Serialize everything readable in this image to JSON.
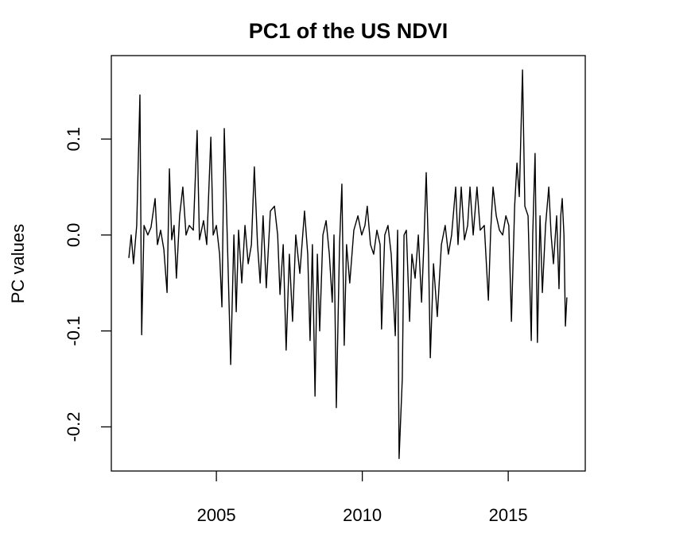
{
  "chart_data": {
    "type": "line",
    "title": "PC1 of the US NDVI",
    "y_label": "PC values",
    "color": "#000000",
    "xlim": [
      2001.4,
      2017.64
    ],
    "ylim": [
      -0.246,
      0.187
    ],
    "xticks": [
      2005,
      2010,
      2015
    ],
    "yticks": [
      -0.2,
      -0.1,
      {
        "value": 0,
        "label": "0.0"
      },
      0.1
    ],
    "x": [
      2002.0,
      2002.08,
      2002.16,
      2002.27,
      2002.38,
      2002.44,
      2002.52,
      2002.65,
      2002.76,
      2002.9,
      2002.98,
      2003.09,
      2003.2,
      2003.31,
      2003.39,
      2003.47,
      2003.55,
      2003.63,
      2003.74,
      2003.85,
      2003.96,
      2004.07,
      2004.21,
      2004.34,
      2004.42,
      2004.56,
      2004.67,
      2004.81,
      2004.89,
      2005.0,
      2005.11,
      2005.19,
      2005.27,
      2005.38,
      2005.49,
      2005.6,
      2005.68,
      2005.76,
      2005.87,
      2005.98,
      2006.09,
      2006.2,
      2006.3,
      2006.41,
      2006.5,
      2006.6,
      2006.71,
      2006.85,
      2006.99,
      2007.1,
      2007.18,
      2007.29,
      2007.39,
      2007.5,
      2007.61,
      2007.72,
      2007.86,
      2008.02,
      2008.13,
      2008.21,
      2008.29,
      2008.38,
      2008.46,
      2008.54,
      2008.65,
      2008.76,
      2008.87,
      2008.97,
      2009.03,
      2009.11,
      2009.22,
      2009.3,
      2009.38,
      2009.46,
      2009.57,
      2009.71,
      2009.85,
      2009.98,
      2010.09,
      2010.17,
      2010.28,
      2010.39,
      2010.5,
      2010.61,
      2010.66,
      2010.77,
      2010.88,
      2010.99,
      2011.13,
      2011.21,
      2011.26,
      2011.37,
      2011.43,
      2011.51,
      2011.62,
      2011.7,
      2011.81,
      2011.92,
      2012.03,
      2012.11,
      2012.19,
      2012.27,
      2012.33,
      2012.44,
      2012.57,
      2012.71,
      2012.84,
      2012.95,
      2013.06,
      2013.2,
      2013.28,
      2013.39,
      2013.5,
      2013.61,
      2013.69,
      2013.8,
      2013.93,
      2014.04,
      2014.18,
      2014.32,
      2014.4,
      2014.48,
      2014.59,
      2014.7,
      2014.81,
      2014.92,
      2015.02,
      2015.11,
      2015.22,
      2015.3,
      2015.38,
      2015.49,
      2015.57,
      2015.68,
      2015.79,
      2015.84,
      2015.92,
      2016.0,
      2016.09,
      2016.17,
      2016.28,
      2016.39,
      2016.47,
      2016.55,
      2016.66,
      2016.74,
      2016.8,
      2016.85,
      2016.91,
      2016.96,
      2017.01
    ],
    "values": [
      -0.024,
      0.0,
      -0.03,
      0.01,
      0.146,
      -0.104,
      0.01,
      0.0,
      0.008,
      0.038,
      -0.01,
      0.005,
      -0.015,
      -0.06,
      0.069,
      -0.005,
      0.01,
      -0.045,
      0.02,
      0.05,
      0.0,
      0.01,
      0.005,
      0.109,
      -0.005,
      0.015,
      -0.01,
      0.102,
      0.0,
      0.01,
      -0.02,
      -0.075,
      0.111,
      -0.01,
      -0.135,
      0.0,
      -0.08,
      0.005,
      -0.05,
      0.01,
      -0.03,
      -0.01,
      0.071,
      -0.01,
      -0.05,
      0.02,
      -0.055,
      0.025,
      0.03,
      0.0,
      -0.062,
      -0.01,
      -0.12,
      -0.02,
      -0.09,
      0.0,
      -0.04,
      0.025,
      -0.02,
      -0.11,
      -0.01,
      -0.168,
      -0.02,
      -0.1,
      0.0,
      0.015,
      -0.02,
      -0.07,
      0.0,
      -0.18,
      -0.01,
      0.053,
      -0.115,
      -0.01,
      -0.05,
      0.005,
      0.02,
      0.0,
      0.01,
      0.03,
      -0.01,
      -0.02,
      0.005,
      -0.01,
      -0.098,
      0.0,
      0.01,
      -0.02,
      -0.105,
      0.005,
      -0.233,
      -0.15,
      0.0,
      0.005,
      -0.09,
      -0.02,
      -0.045,
      0.0,
      -0.07,
      -0.01,
      0.065,
      -0.02,
      -0.128,
      -0.03,
      -0.085,
      -0.01,
      0.01,
      -0.02,
      0.0,
      0.05,
      -0.01,
      0.05,
      -0.005,
      0.01,
      0.05,
      0.0,
      0.05,
      0.005,
      0.01,
      -0.068,
      0.005,
      0.05,
      0.02,
      0.005,
      0.0,
      0.02,
      0.01,
      -0.09,
      0.03,
      0.075,
      0.04,
      0.172,
      0.03,
      0.02,
      -0.11,
      0.0,
      0.085,
      -0.112,
      0.02,
      -0.06,
      0.01,
      0.05,
      0.0,
      -0.03,
      0.02,
      -0.056,
      0.02,
      0.038,
      0.0,
      -0.095,
      -0.065
    ]
  }
}
